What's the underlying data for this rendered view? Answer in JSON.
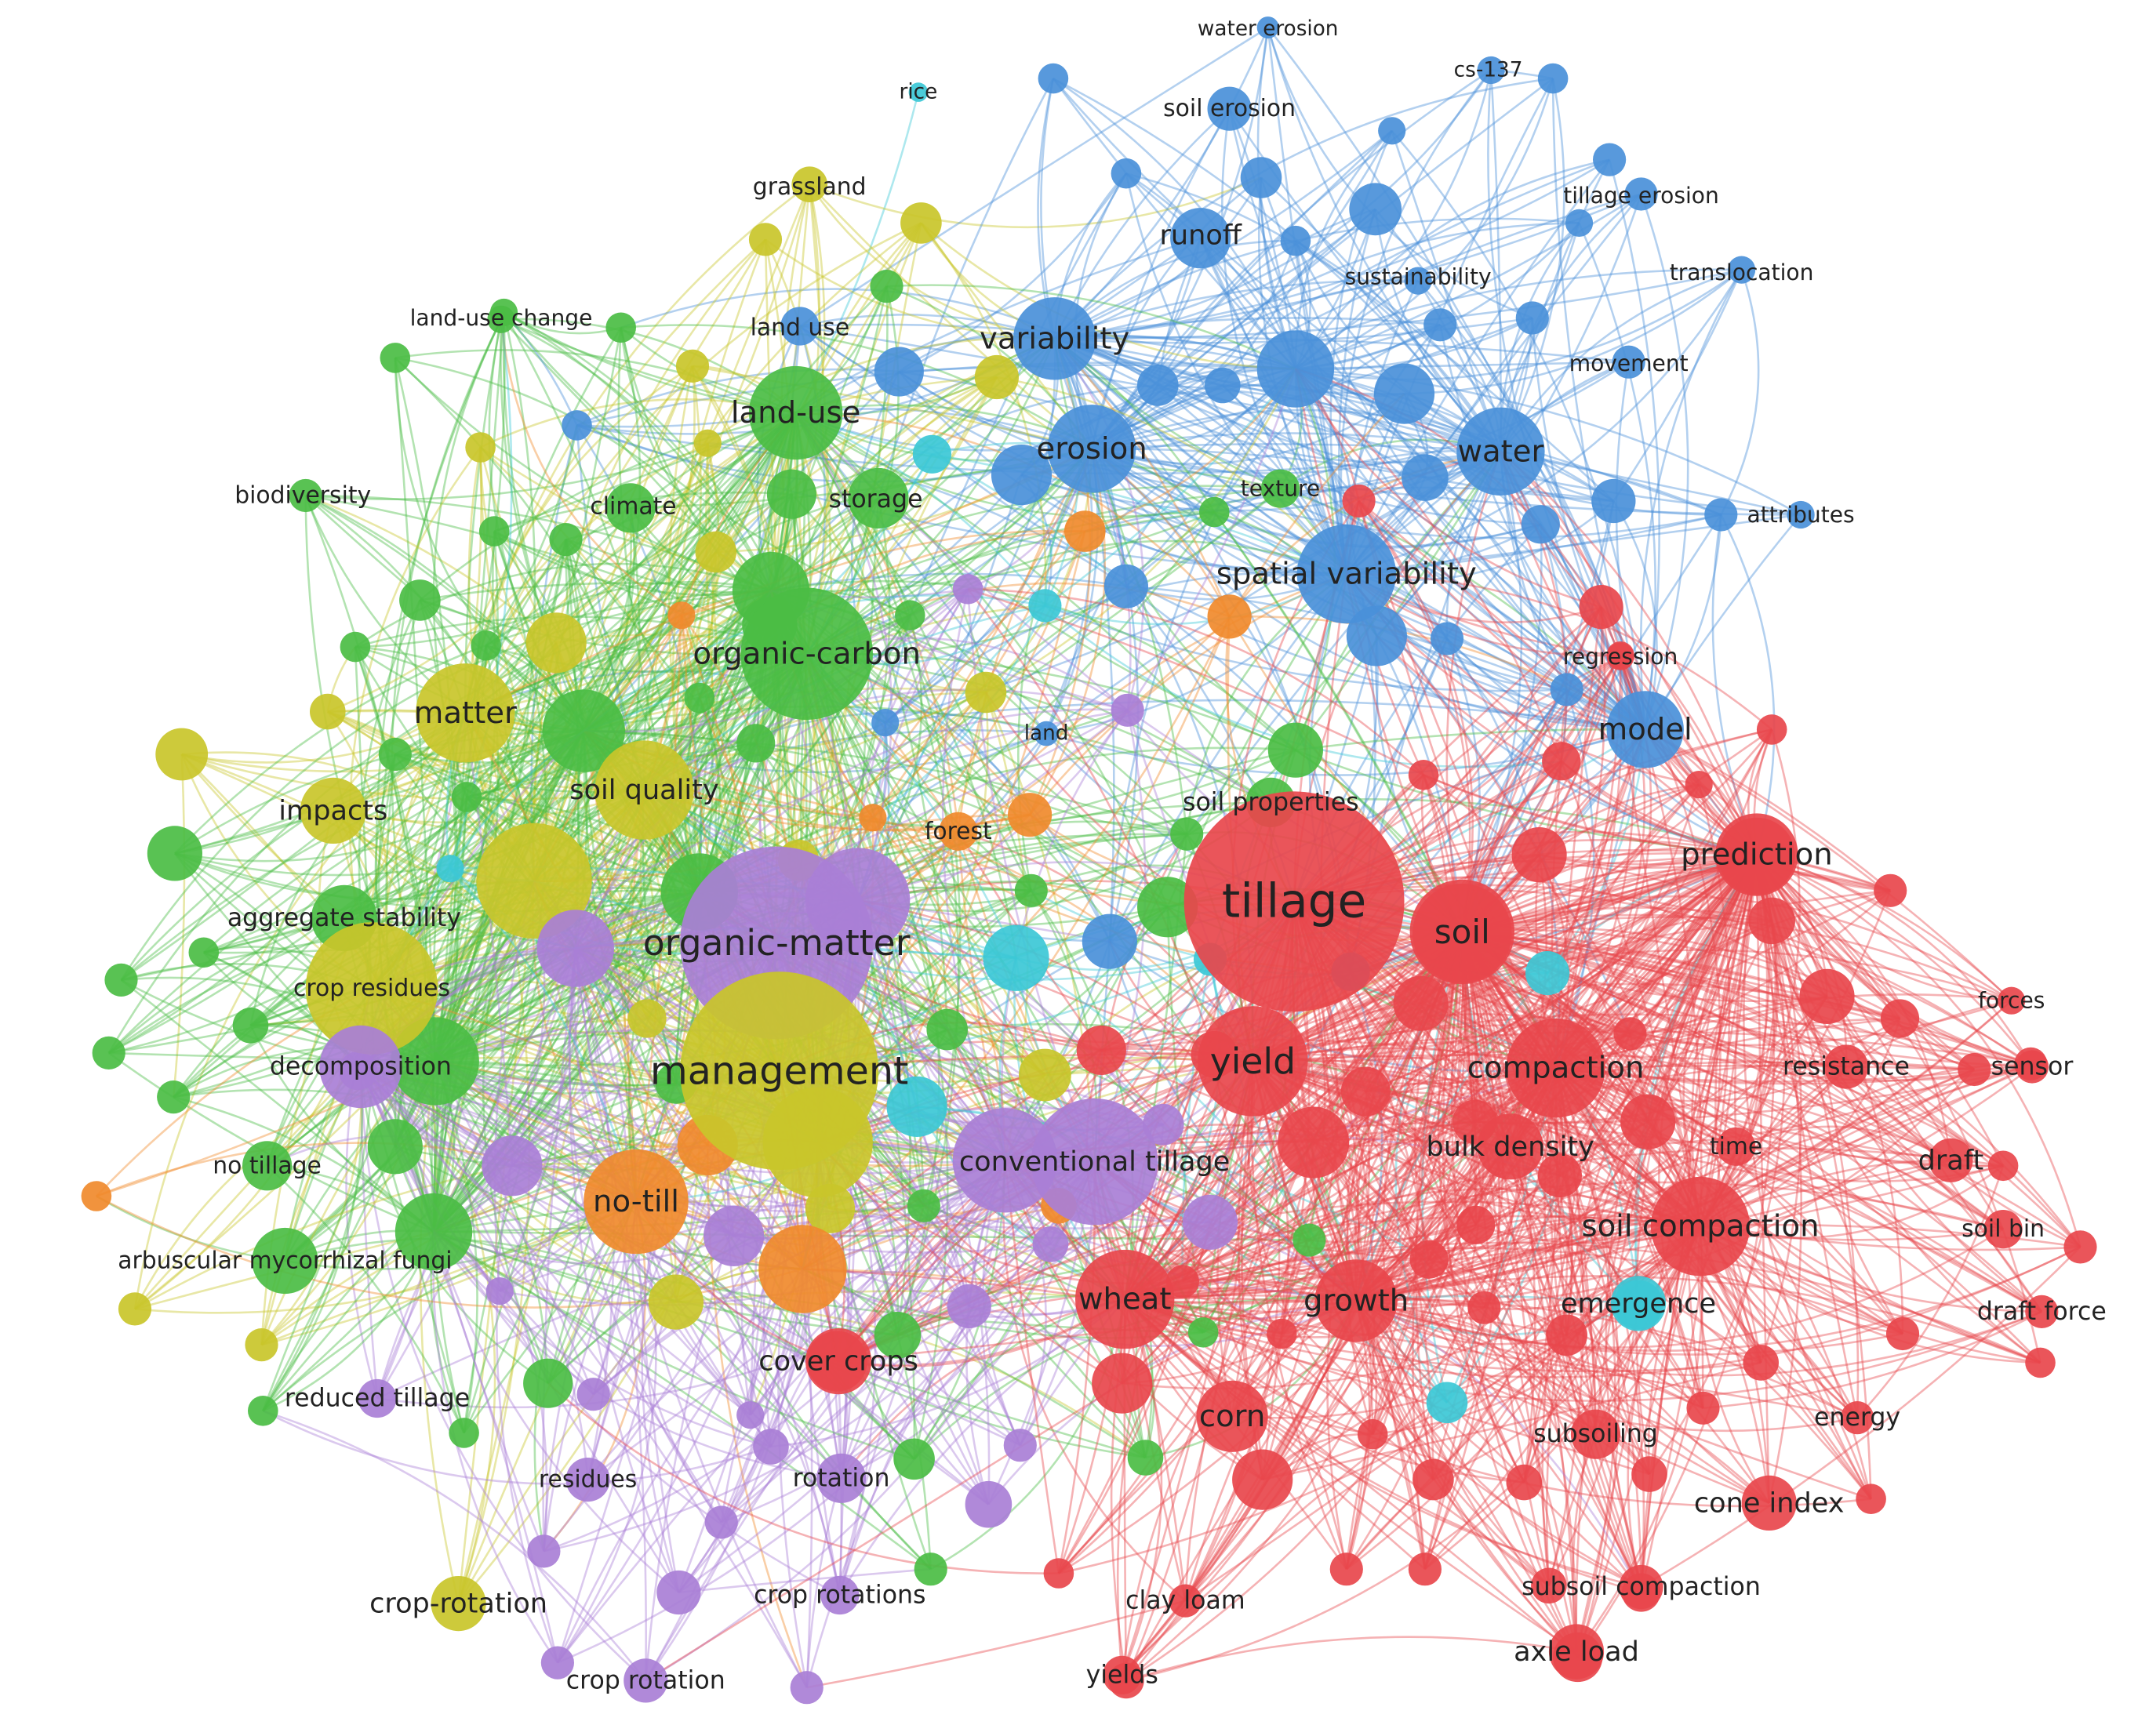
{
  "colors": {
    "red": "#e8474c",
    "blue": "#4a90d9",
    "green": "#4bbd44",
    "yellow": "#c9c62a",
    "purple": "#a97fd6",
    "orange": "#f08a2c",
    "cyan": "#3cc8d6"
  },
  "terms": [
    {
      "label": "water erosion",
      "cluster": "blue"
    },
    {
      "label": "rice",
      "cluster": "cyan"
    },
    {
      "label": "cs-137",
      "cluster": "blue"
    },
    {
      "label": "soil erosion",
      "cluster": "blue"
    },
    {
      "label": "grassland",
      "cluster": "yellow"
    },
    {
      "label": "tillage erosion",
      "cluster": "blue"
    },
    {
      "label": "runoff",
      "cluster": "blue"
    },
    {
      "label": "sustainability",
      "cluster": "blue"
    },
    {
      "label": "translocation",
      "cluster": "blue"
    },
    {
      "label": "land-use change",
      "cluster": "green"
    },
    {
      "label": "land use",
      "cluster": "blue"
    },
    {
      "label": "variability",
      "cluster": "blue"
    },
    {
      "label": "movement",
      "cluster": "blue"
    },
    {
      "label": "land-use",
      "cluster": "green"
    },
    {
      "label": "erosion",
      "cluster": "blue"
    },
    {
      "label": "water",
      "cluster": "blue"
    },
    {
      "label": "biodiversity",
      "cluster": "green"
    },
    {
      "label": "climate",
      "cluster": "green"
    },
    {
      "label": "storage",
      "cluster": "green"
    },
    {
      "label": "texture",
      "cluster": "green"
    },
    {
      "label": "attributes",
      "cluster": "blue"
    },
    {
      "label": "spatial variability",
      "cluster": "blue"
    },
    {
      "label": "organic-carbon",
      "cluster": "green"
    },
    {
      "label": "regression",
      "cluster": "red"
    },
    {
      "label": "matter",
      "cluster": "yellow"
    },
    {
      "label": "land",
      "cluster": "blue"
    },
    {
      "label": "model",
      "cluster": "blue"
    },
    {
      "label": "soil quality",
      "cluster": "yellow"
    },
    {
      "label": "impacts",
      "cluster": "yellow"
    },
    {
      "label": "soil properties",
      "cluster": "green"
    },
    {
      "label": "forest",
      "cluster": "orange"
    },
    {
      "label": "prediction",
      "cluster": "red"
    },
    {
      "label": "tillage",
      "cluster": "red"
    },
    {
      "label": "soil",
      "cluster": "red"
    },
    {
      "label": "aggregate stability",
      "cluster": "green"
    },
    {
      "label": "organic-matter",
      "cluster": "purple"
    },
    {
      "label": "crop residues",
      "cluster": "yellow"
    },
    {
      "label": "forces",
      "cluster": "red"
    },
    {
      "label": "decomposition",
      "cluster": "purple"
    },
    {
      "label": "management",
      "cluster": "yellow"
    },
    {
      "label": "yield",
      "cluster": "red"
    },
    {
      "label": "compaction",
      "cluster": "red"
    },
    {
      "label": "resistance",
      "cluster": "red"
    },
    {
      "label": "sensor",
      "cluster": "red"
    },
    {
      "label": "bulk density",
      "cluster": "red"
    },
    {
      "label": "time",
      "cluster": "red"
    },
    {
      "label": "no tillage",
      "cluster": "green"
    },
    {
      "label": "conventional tillage",
      "cluster": "purple"
    },
    {
      "label": "draft",
      "cluster": "red"
    },
    {
      "label": "no-till",
      "cluster": "orange"
    },
    {
      "label": "soil compaction",
      "cluster": "red"
    },
    {
      "label": "soil bin",
      "cluster": "red"
    },
    {
      "label": "arbuscular mycorrhizal fungi",
      "cluster": "green"
    },
    {
      "label": "wheat",
      "cluster": "red"
    },
    {
      "label": "growth",
      "cluster": "red"
    },
    {
      "label": "emergence",
      "cluster": "cyan"
    },
    {
      "label": "draft force",
      "cluster": "red"
    },
    {
      "label": "cover crops",
      "cluster": "red"
    },
    {
      "label": "reduced tillage",
      "cluster": "purple"
    },
    {
      "label": "corn",
      "cluster": "red"
    },
    {
      "label": "energy",
      "cluster": "red"
    },
    {
      "label": "subsoiling",
      "cluster": "red"
    },
    {
      "label": "residues",
      "cluster": "purple"
    },
    {
      "label": "rotation",
      "cluster": "purple"
    },
    {
      "label": "cone index",
      "cluster": "red"
    },
    {
      "label": "crop-rotation",
      "cluster": "yellow"
    },
    {
      "label": "crop rotations",
      "cluster": "purple"
    },
    {
      "label": "clay loam",
      "cluster": "red"
    },
    {
      "label": "subsoil compaction",
      "cluster": "red"
    },
    {
      "label": "axle load",
      "cluster": "red"
    },
    {
      "label": "crop rotation",
      "cluster": "purple"
    },
    {
      "label": "yields",
      "cluster": "red"
    }
  ]
}
